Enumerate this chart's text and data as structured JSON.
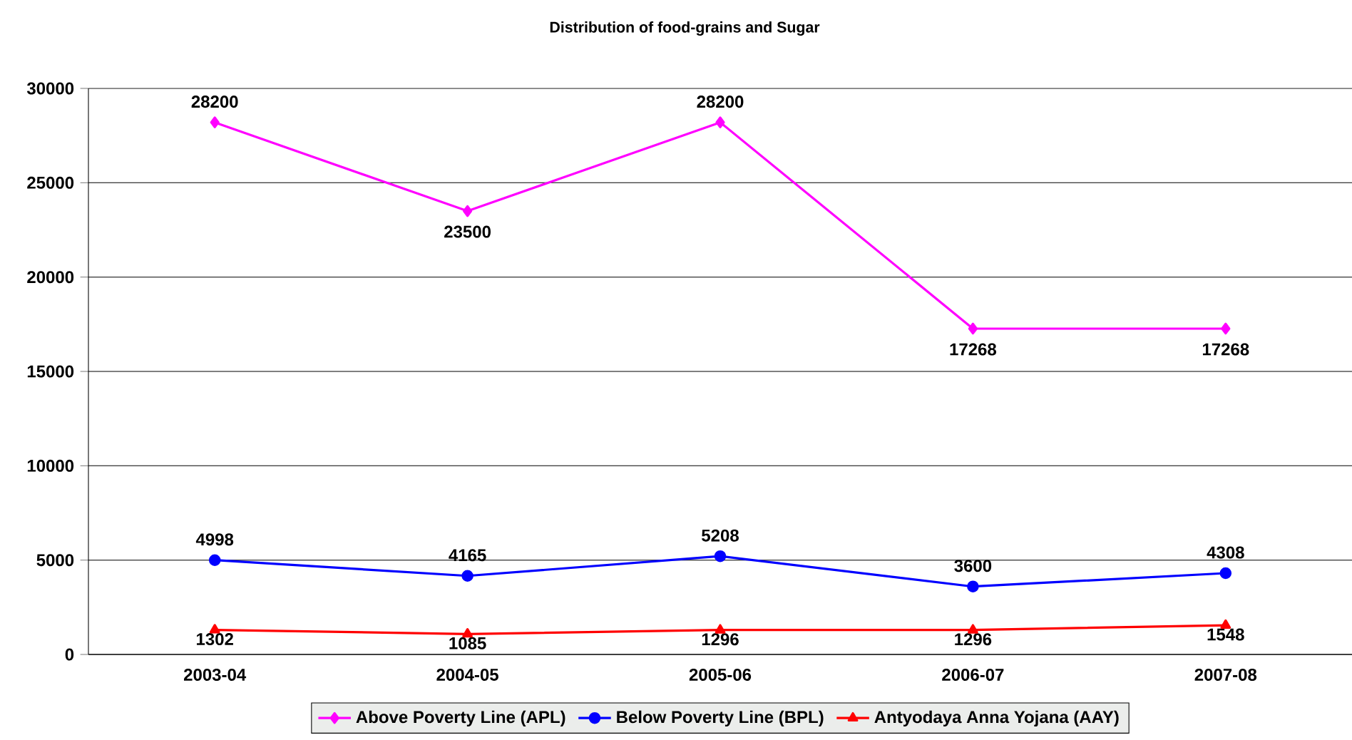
{
  "chart_data": {
    "type": "line",
    "title": "Distribution of food-grains and Sugar",
    "categories": [
      "2003-04",
      "2004-05",
      "2005-06",
      "2006-07",
      "2007-08"
    ],
    "series": [
      {
        "name": "Above Poverty Line (APL)",
        "color": "#ff00ff",
        "marker": "diamond",
        "values": [
          28200,
          23500,
          28200,
          17268,
          17268
        ]
      },
      {
        "name": "Below Poverty Line (BPL)",
        "color": "#0000ff",
        "marker": "circle",
        "values": [
          4998,
          4165,
          5208,
          3600,
          4308
        ]
      },
      {
        "name": "Antyodaya Anna Yojana (AAY)",
        "color": "#ff0000",
        "marker": "triangle",
        "values": [
          1302,
          1085,
          1296,
          1296,
          1548
        ]
      }
    ],
    "ylim": [
      0,
      30000
    ],
    "yticks": [
      0,
      5000,
      10000,
      15000,
      20000,
      25000,
      30000
    ],
    "grid": "y",
    "legend": "bottom",
    "data_labels": true
  }
}
